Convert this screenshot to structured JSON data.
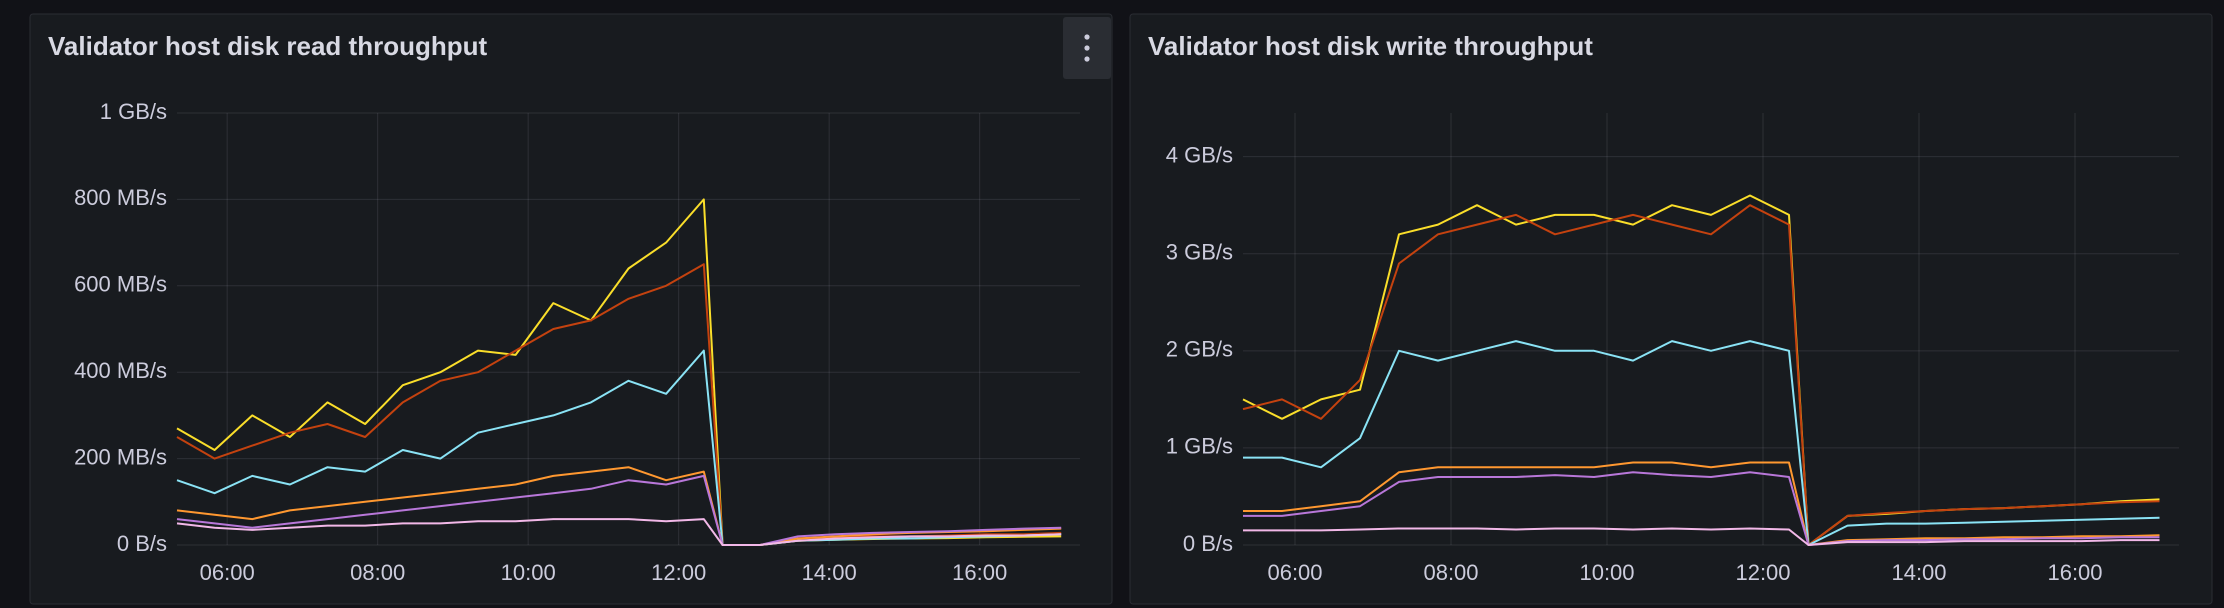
{
  "chart_data": [
    {
      "type": "line",
      "title": "Validator host disk read throughput",
      "x": [
        "05:20",
        "05:50",
        "06:20",
        "06:50",
        "07:20",
        "07:50",
        "08:20",
        "08:50",
        "09:20",
        "09:50",
        "10:20",
        "10:50",
        "11:20",
        "11:50",
        "12:20",
        "12:35",
        "13:05",
        "13:35",
        "14:05",
        "14:35",
        "15:05",
        "15:35",
        "16:05",
        "16:35",
        "17:05"
      ],
      "xlim": [
        "05:20",
        "17:20"
      ],
      "xticks": [
        "06:00",
        "08:00",
        "10:00",
        "12:00",
        "14:00",
        "16:00"
      ],
      "ylim": [
        0,
        1000
      ],
      "yticks": [
        {
          "value": 0,
          "label": "0 B/s"
        },
        {
          "value": 200,
          "label": "200 MB/s"
        },
        {
          "value": 400,
          "label": "400 MB/s"
        },
        {
          "value": 600,
          "label": "600 MB/s"
        },
        {
          "value": 800,
          "label": "800 MB/s"
        },
        {
          "value": 1000,
          "label": "1 GB/s"
        }
      ],
      "grid": true,
      "series": [
        {
          "color": "#fade2a",
          "values": [
            270,
            220,
            300,
            250,
            330,
            280,
            370,
            400,
            450,
            440,
            560,
            520,
            640,
            700,
            800,
            0,
            0,
            10,
            12,
            14,
            15,
            16,
            18,
            19,
            20
          ]
        },
        {
          "color": "#c4420f",
          "values": [
            250,
            200,
            230,
            260,
            280,
            250,
            330,
            380,
            400,
            450,
            500,
            520,
            570,
            600,
            650,
            0,
            0,
            15,
            18,
            20,
            20,
            22,
            25,
            25,
            28
          ]
        },
        {
          "color": "#8ae3f5",
          "values": [
            150,
            120,
            160,
            140,
            180,
            170,
            220,
            200,
            260,
            280,
            300,
            330,
            380,
            350,
            450,
            0,
            0,
            10,
            12,
            15,
            15,
            18,
            20,
            22,
            25
          ]
        },
        {
          "color": "#ff9830",
          "values": [
            80,
            70,
            60,
            80,
            90,
            100,
            110,
            120,
            130,
            140,
            160,
            170,
            180,
            150,
            170,
            0,
            0,
            15,
            20,
            25,
            28,
            30,
            32,
            35,
            38
          ]
        },
        {
          "color": "#b877d9",
          "values": [
            60,
            50,
            40,
            50,
            60,
            70,
            80,
            90,
            100,
            110,
            120,
            130,
            150,
            140,
            160,
            0,
            0,
            20,
            25,
            28,
            30,
            32,
            35,
            38,
            40
          ]
        },
        {
          "color": "#f2b8e8",
          "values": [
            50,
            40,
            35,
            40,
            45,
            45,
            50,
            50,
            55,
            55,
            60,
            60,
            60,
            55,
            60,
            0,
            0,
            10,
            15,
            18,
            20,
            20,
            22,
            22,
            25
          ]
        }
      ]
    },
    {
      "type": "line",
      "title": "Validator host disk write throughput",
      "x": [
        "05:20",
        "05:50",
        "06:20",
        "06:50",
        "07:20",
        "07:50",
        "08:20",
        "08:50",
        "09:20",
        "09:50",
        "10:20",
        "10:50",
        "11:20",
        "11:50",
        "12:20",
        "12:35",
        "13:05",
        "13:35",
        "14:05",
        "14:35",
        "15:05",
        "15:35",
        "16:05",
        "16:35",
        "17:05"
      ],
      "xlim": [
        "05:20",
        "17:20"
      ],
      "xticks": [
        "06:00",
        "08:00",
        "10:00",
        "12:00",
        "14:00",
        "16:00"
      ],
      "ylim": [
        0,
        4.45
      ],
      "yticks": [
        {
          "value": 0,
          "label": "0 B/s"
        },
        {
          "value": 1,
          "label": "1 GB/s"
        },
        {
          "value": 2,
          "label": "2 GB/s"
        },
        {
          "value": 3,
          "label": "3 GB/s"
        },
        {
          "value": 4,
          "label": "4 GB/s"
        }
      ],
      "grid": true,
      "series": [
        {
          "color": "#fade2a",
          "values": [
            1.5,
            1.3,
            1.5,
            1.6,
            3.2,
            3.3,
            3.5,
            3.3,
            3.4,
            3.4,
            3.3,
            3.5,
            3.4,
            3.6,
            3.4,
            0,
            0.3,
            0.32,
            0.35,
            0.37,
            0.38,
            0.4,
            0.42,
            0.45,
            0.47
          ]
        },
        {
          "color": "#c4420f",
          "values": [
            1.4,
            1.5,
            1.3,
            1.7,
            2.9,
            3.2,
            3.3,
            3.4,
            3.2,
            3.3,
            3.4,
            3.3,
            3.2,
            3.5,
            3.3,
            0,
            0.3,
            0.33,
            0.35,
            0.37,
            0.38,
            0.4,
            0.42,
            0.44,
            0.45
          ]
        },
        {
          "color": "#8ae3f5",
          "values": [
            0.9,
            0.9,
            0.8,
            1.1,
            2.0,
            1.9,
            2.0,
            2.1,
            2.0,
            2.0,
            1.9,
            2.1,
            2.0,
            2.1,
            2.0,
            0,
            0.2,
            0.22,
            0.22,
            0.23,
            0.24,
            0.25,
            0.26,
            0.27,
            0.28
          ]
        },
        {
          "color": "#ff9830",
          "values": [
            0.35,
            0.35,
            0.4,
            0.45,
            0.75,
            0.8,
            0.8,
            0.8,
            0.8,
            0.8,
            0.85,
            0.85,
            0.8,
            0.85,
            0.85,
            0,
            0.05,
            0.06,
            0.07,
            0.07,
            0.08,
            0.08,
            0.09,
            0.09,
            0.1
          ]
        },
        {
          "color": "#b877d9",
          "values": [
            0.3,
            0.3,
            0.35,
            0.4,
            0.65,
            0.7,
            0.7,
            0.7,
            0.72,
            0.7,
            0.75,
            0.72,
            0.7,
            0.75,
            0.7,
            0,
            0.04,
            0.05,
            0.05,
            0.06,
            0.06,
            0.07,
            0.07,
            0.08,
            0.08
          ]
        },
        {
          "color": "#f2b8e8",
          "values": [
            0.15,
            0.15,
            0.15,
            0.16,
            0.17,
            0.17,
            0.17,
            0.16,
            0.17,
            0.17,
            0.16,
            0.17,
            0.16,
            0.17,
            0.16,
            0,
            0.03,
            0.03,
            0.03,
            0.04,
            0.04,
            0.04,
            0.04,
            0.05,
            0.05
          ]
        }
      ]
    }
  ]
}
